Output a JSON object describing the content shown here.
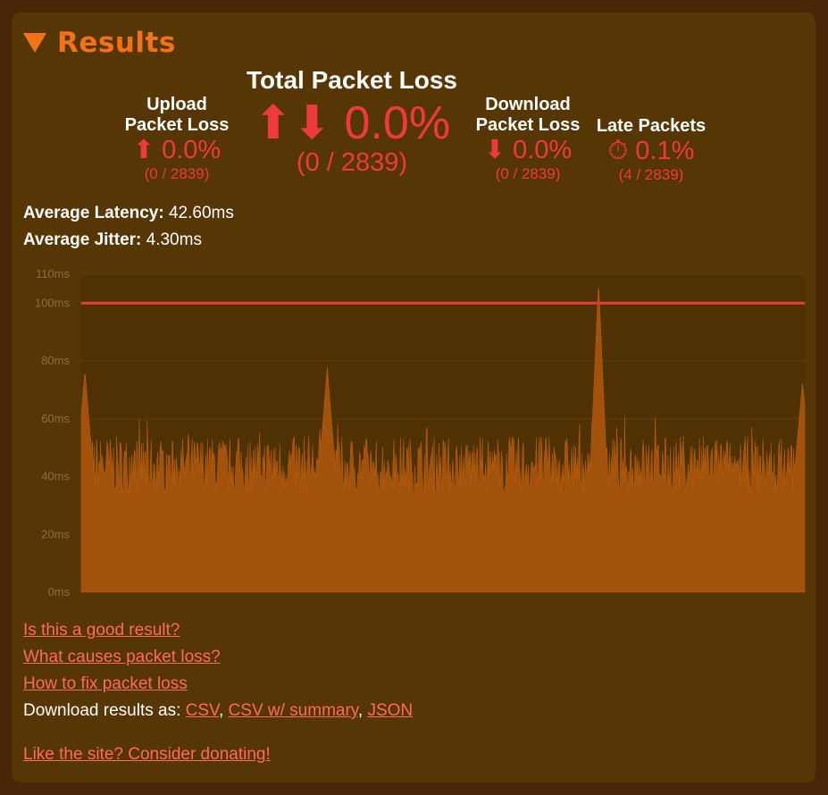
{
  "section": {
    "title": "Results"
  },
  "upload": {
    "label_line1": "Upload",
    "label_line2": "Packet Loss",
    "icon": "up-arrow-icon",
    "value": "⬆ 0.0%",
    "sub": "(0 / 2839)"
  },
  "total": {
    "label": "Total Packet Loss",
    "icon": "up-down-arrows-icon",
    "value": "⬆⬇ 0.0%",
    "sub": "(0 / 2839)"
  },
  "download": {
    "label_line1": "Download",
    "label_line2": "Packet Loss",
    "icon": "down-arrow-icon",
    "value": "⬇ 0.0%",
    "sub": "(0 / 2839)"
  },
  "late": {
    "label": "Late Packets",
    "icon": "stopwatch-icon",
    "value": "⏱ 0.1%",
    "sub": "(4 / 2839)"
  },
  "latency": {
    "label": "Average Latency:",
    "value": "42.60ms"
  },
  "jitter": {
    "label": "Average Jitter:",
    "value": "4.30ms"
  },
  "chart_data": {
    "type": "area",
    "title": "",
    "xlabel": "",
    "ylabel": "",
    "ylim": [
      0,
      110
    ],
    "yticks": [
      "0ms",
      "20ms",
      "40ms",
      "60ms",
      "80ms",
      "100ms",
      "110ms"
    ],
    "grid": true,
    "threshold": {
      "value": 100,
      "color": "#e53935"
    },
    "series": [
      {
        "color": "#a3520b",
        "count": 2839,
        "baseline_ms": 40,
        "band_ms": [
          35,
          55
        ],
        "spikes": [
          {
            "position": 0.005,
            "value": 77
          },
          {
            "position": 0.34,
            "value": 78
          },
          {
            "position": 0.715,
            "value": 108
          },
          {
            "position": 0.997,
            "value": 73
          }
        ]
      }
    ]
  },
  "links": {
    "good_result": "Is this a good result?",
    "causes": "What causes packet loss?",
    "fix": "How to fix packet loss",
    "download_prefix": "Download results as: ",
    "csv": "CSV",
    "csv_summary": "CSV w/ summary",
    "json": "JSON",
    "sep": ", ",
    "donate": "Like the site? Consider donating!"
  },
  "colors": {
    "accent": "#f47216",
    "loss": "#ee3a3a",
    "link": "#ff6a5c",
    "panel": "#563604",
    "page": "#4a2508"
  }
}
